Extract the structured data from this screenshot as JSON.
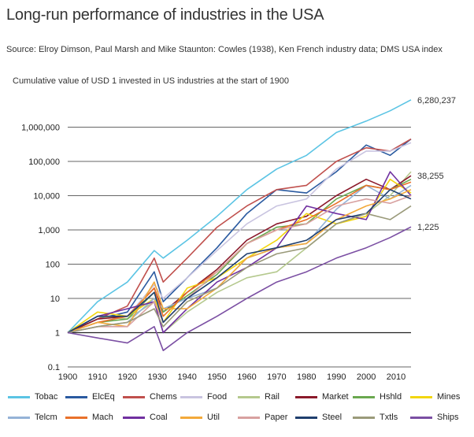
{
  "chart_data": {
    "type": "line",
    "title": "Long-run performance of industries in the USA",
    "source": "Source: Elroy Dimson, Paul Marsh and Mike Staunton: Cowles (1938), Ken French industry data; DMS USA index",
    "subtitle": "Cumulative value of USD 1 invested in US industries at the start of 1900",
    "y_scale": "log",
    "ylim": [
      0.1,
      10000000
    ],
    "xlim": [
      1900,
      2015
    ],
    "x_ticks": [
      1900,
      1910,
      1920,
      1930,
      1940,
      1950,
      1960,
      1970,
      1980,
      1990,
      2000,
      2010
    ],
    "y_ticks": [
      {
        "value": 0.1,
        "label": "0.1"
      },
      {
        "value": 1,
        "label": "1"
      },
      {
        "value": 10,
        "label": "10"
      },
      {
        "value": 100,
        "label": "100"
      },
      {
        "value": 1000,
        "label": "1,000"
      },
      {
        "value": 10000,
        "label": "10,000"
      },
      {
        "value": 100000,
        "label": "100,000"
      },
      {
        "value": 1000000,
        "label": "1,000,000"
      }
    ],
    "x": [
      1900,
      1910,
      1920,
      1929,
      1932,
      1940,
      1950,
      1960,
      1970,
      1980,
      1990,
      2000,
      2008,
      2015
    ],
    "annotations": [
      {
        "text": "6,280,237",
        "x": 2015,
        "y": 6280237
      },
      {
        "text": "38,255",
        "x": 2015,
        "y": 38255
      },
      {
        "text": "1,225",
        "x": 2015,
        "y": 1225
      }
    ],
    "series": [
      {
        "name": "Tobac",
        "color": "#5bc4e4",
        "values": [
          1,
          8,
          30,
          250,
          150,
          500,
          2500,
          15000,
          60000,
          150000,
          700000,
          1500000,
          3000000,
          6280237
        ]
      },
      {
        "name": "ElcEq",
        "color": "#2a5aa0",
        "values": [
          1,
          2.5,
          4,
          60,
          8,
          40,
          300,
          3000,
          15000,
          12000,
          50000,
          300000,
          150000,
          450000
        ]
      },
      {
        "name": "Chems",
        "color": "#c0504d",
        "values": [
          1,
          2.5,
          6,
          150,
          30,
          150,
          1200,
          5000,
          15000,
          20000,
          100000,
          250000,
          200000,
          450000
        ]
      },
      {
        "name": "Food",
        "color": "#c9c4e0",
        "values": [
          1,
          2,
          3,
          25,
          10,
          40,
          250,
          1500,
          5000,
          8000,
          60000,
          200000,
          200000,
          350000
        ]
      },
      {
        "name": "Rail",
        "color": "#b5c98e",
        "values": [
          1,
          3,
          2.5,
          8,
          1,
          4,
          15,
          40,
          60,
          300,
          1500,
          3000,
          10000,
          50000
        ]
      },
      {
        "name": "Market",
        "color": "#8b1a2b",
        "values": [
          1,
          2.5,
          3,
          20,
          4,
          15,
          70,
          500,
          1500,
          2500,
          10000,
          30000,
          15000,
          38255
        ]
      },
      {
        "name": "Hshld",
        "color": "#6aa84f",
        "values": [
          1,
          2,
          2.5,
          15,
          4,
          12,
          50,
          400,
          1200,
          1500,
          8000,
          20000,
          15000,
          30000
        ]
      },
      {
        "name": "Mines",
        "color": "#f2d60f",
        "values": [
          1,
          4,
          3,
          10,
          2,
          20,
          40,
          150,
          500,
          3000,
          1500,
          2500,
          30000,
          12000
        ]
      },
      {
        "name": "Telcm",
        "color": "#95b3d7",
        "values": [
          1,
          1.5,
          2,
          10,
          5,
          10,
          20,
          150,
          300,
          400,
          4000,
          20000,
          8000,
          20000
        ]
      },
      {
        "name": "Mach",
        "color": "#e9712a",
        "values": [
          1,
          2,
          3,
          20,
          3,
          15,
          60,
          400,
          1000,
          2000,
          6000,
          20000,
          15000,
          25000
        ]
      },
      {
        "name": "Coal",
        "color": "#7030a0",
        "values": [
          1,
          3,
          5,
          8,
          1,
          5,
          30,
          80,
          300,
          5000,
          3000,
          2000,
          50000,
          10000
        ]
      },
      {
        "name": "Util",
        "color": "#f3a93a",
        "values": [
          1,
          2,
          1.5,
          30,
          5,
          5,
          20,
          150,
          300,
          400,
          2000,
          5000,
          8000,
          15000
        ]
      },
      {
        "name": "Paper",
        "color": "#d8a1a0",
        "values": [
          1,
          1.5,
          1.5,
          8,
          2,
          10,
          60,
          400,
          1000,
          1500,
          5000,
          8000,
          6000,
          10000
        ]
      },
      {
        "name": "Steel",
        "color": "#1f3f6e",
        "values": [
          1,
          3,
          3,
          15,
          2,
          10,
          40,
          200,
          300,
          500,
          2000,
          3000,
          15000,
          8000
        ]
      },
      {
        "name": "Txtls",
        "color": "#9a9a7a",
        "values": [
          1,
          1.5,
          2,
          5,
          1.5,
          8,
          20,
          80,
          200,
          300,
          1500,
          3000,
          2000,
          5000
        ]
      },
      {
        "name": "Ships",
        "color": "#7b4fa3",
        "values": [
          1,
          0.7,
          0.5,
          1.5,
          0.3,
          1,
          3,
          10,
          30,
          60,
          150,
          300,
          600,
          1225
        ]
      }
    ]
  }
}
